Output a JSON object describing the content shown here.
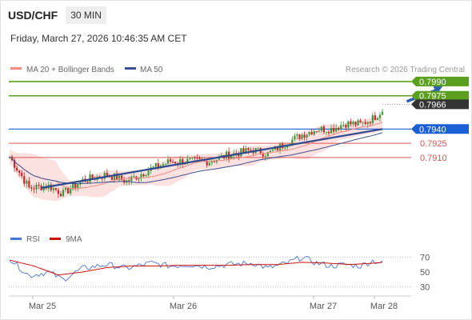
{
  "header": {
    "symbol": "USD/CHF",
    "period": "30 MIN"
  },
  "timestamp": "Friday, March 27, 2026 10:46:35 AM CET",
  "credit": "Research © 2026 Trading Central",
  "chart_data": {
    "type": "candlestick",
    "price_panel": {
      "legend": [
        {
          "label": "MA 20 + Bollinger Bands",
          "color": "#f28b82"
        },
        {
          "label": "MA 50",
          "color": "#3b4f8f"
        }
      ],
      "ylim": [
        0.784,
        0.7995
      ],
      "last_price": 0.7966,
      "levels": [
        {
          "value": "0.7990",
          "kind": "target",
          "color": "#5aa01e"
        },
        {
          "value": "0.7975",
          "kind": "target",
          "color": "#5aa01e"
        },
        {
          "value": "0.7966",
          "kind": "last",
          "color": "#333333"
        },
        {
          "value": "0.7940",
          "kind": "pivot",
          "color": "#1a5fd6"
        },
        {
          "value": "0.7925",
          "kind": "support",
          "color": "#e05555"
        },
        {
          "value": "0.7910",
          "kind": "support",
          "color": "#e05555"
        }
      ],
      "x_labels": [
        "Mar 25",
        "Mar 26",
        "Mar 27",
        "Mar 28"
      ],
      "close_path": [
        [
          0,
          0.7911
        ],
        [
          8,
          0.7878
        ],
        [
          16,
          0.788
        ],
        [
          22,
          0.7872
        ],
        [
          30,
          0.7886
        ],
        [
          40,
          0.7892
        ],
        [
          48,
          0.7885
        ],
        [
          58,
          0.7898
        ],
        [
          66,
          0.7906
        ],
        [
          74,
          0.7906
        ],
        [
          82,
          0.7906
        ],
        [
          90,
          0.7913
        ],
        [
          100,
          0.7918
        ],
        [
          106,
          0.7914
        ],
        [
          114,
          0.7926
        ],
        [
          120,
          0.7934
        ],
        [
          126,
          0.794
        ],
        [
          132,
          0.794
        ],
        [
          138,
          0.7946
        ],
        [
          144,
          0.7945
        ],
        [
          149,
          0.7951
        ],
        [
          153,
          0.796
        ]
      ],
      "trendline": [
        [
          13,
          0.7878
        ],
        [
          153,
          0.794
        ]
      ],
      "forecast_arrow": [
        [
          163,
          0.7969
        ],
        [
          178,
          0.7986
        ]
      ]
    },
    "rsi_panel": {
      "legend": [
        {
          "label": "RSI",
          "color": "#4a74d9"
        },
        {
          "label": "9MA",
          "color": "#cc1111"
        }
      ],
      "ylim": [
        20,
        80
      ],
      "ticks": [
        70,
        50,
        30
      ],
      "rsi": [
        [
          0,
          68
        ],
        [
          8,
          45
        ],
        [
          16,
          50
        ],
        [
          22,
          40
        ],
        [
          30,
          55
        ],
        [
          40,
          60
        ],
        [
          48,
          55
        ],
        [
          58,
          62
        ],
        [
          66,
          58
        ],
        [
          74,
          60
        ],
        [
          82,
          57
        ],
        [
          90,
          60
        ],
        [
          100,
          62
        ],
        [
          106,
          55
        ],
        [
          114,
          62
        ],
        [
          120,
          70
        ],
        [
          126,
          62
        ],
        [
          132,
          58
        ],
        [
          138,
          60
        ],
        [
          144,
          58
        ],
        [
          149,
          65
        ],
        [
          153,
          62
        ]
      ],
      "ma9": [
        [
          0,
          66
        ],
        [
          10,
          58
        ],
        [
          20,
          46
        ],
        [
          30,
          50
        ],
        [
          40,
          56
        ],
        [
          50,
          58
        ],
        [
          60,
          58
        ],
        [
          70,
          59
        ],
        [
          80,
          59
        ],
        [
          90,
          59
        ],
        [
          100,
          60
        ],
        [
          110,
          60
        ],
        [
          120,
          63
        ],
        [
          130,
          62
        ],
        [
          140,
          60
        ],
        [
          150,
          62
        ],
        [
          153,
          63
        ]
      ]
    }
  }
}
